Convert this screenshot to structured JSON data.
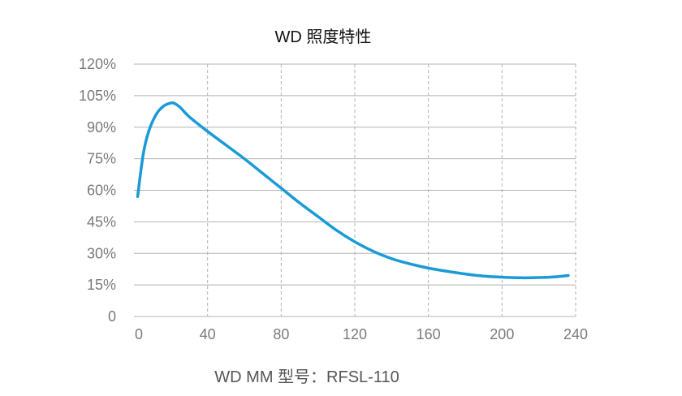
{
  "chart_data": {
    "type": "line",
    "title": "WD 照度特性",
    "xlabel": "",
    "ylabel": "",
    "xlim": [
      0,
      240
    ],
    "ylim": [
      0,
      120
    ],
    "x_ticks": [
      "0",
      "40",
      "80",
      "120",
      "160",
      "200",
      "240"
    ],
    "x_tick_values": [
      0,
      40,
      80,
      120,
      160,
      200,
      240
    ],
    "y_ticks": [
      "0",
      "15%",
      "30%",
      "45%",
      "60%",
      "75%",
      "90%",
      "105%",
      "120%"
    ],
    "y_tick_values": [
      0,
      15,
      30,
      45,
      60,
      75,
      90,
      105,
      120
    ],
    "grid": {
      "horizontal": "solid",
      "vertical": "dashed"
    },
    "series": [
      {
        "name": "",
        "color": "#1a9ad6",
        "x": [
          2,
          5,
          8,
          12,
          16,
          20,
          22,
          25,
          30,
          40,
          50,
          60,
          70,
          80,
          90,
          100,
          110,
          120,
          130,
          140,
          150,
          160,
          170,
          180,
          190,
          200,
          210,
          220,
          230,
          236
        ],
        "y": [
          57,
          77,
          88,
          96,
          100,
          101.5,
          101.3,
          99.5,
          95,
          88,
          81.5,
          75,
          68,
          61,
          54,
          47.5,
          41,
          35.5,
          31,
          27.5,
          25,
          23,
          21.5,
          20.2,
          19.2,
          18.7,
          18.4,
          18.5,
          18.9,
          19.5
        ]
      }
    ]
  },
  "footer": {
    "model_label": "WD MM 型号：RFSL-110"
  }
}
